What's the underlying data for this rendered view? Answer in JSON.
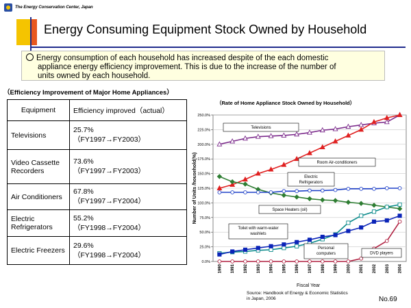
{
  "header": {
    "org": "The Energy Conservation Center, Japan",
    "title": "Energy Consuming Equipment Stock Owned by Household"
  },
  "notice": {
    "line1": "Energy consumption of each household has increased despite of the each domestic",
    "line2": "appliance energy efficiency improvement. This is due to the increase of the number of",
    "line3": "units owned by each household."
  },
  "table": {
    "title": "（Efficiency Improvement of Major Home Appliances）",
    "headers": [
      "Equipment",
      "Efficiency improved（actual）"
    ],
    "rows": [
      {
        "equipment": "Televisions",
        "pct": "25.7%",
        "period": "（FY1997→FY2003）"
      },
      {
        "equipment": "Video Cassette Recorders",
        "pct": "73.6%",
        "period": "（FY1997→FY2003）"
      },
      {
        "equipment": "Air Conditioners",
        "pct": "67.8%",
        "period": "（FY1997→FY2004）"
      },
      {
        "equipment": "Electric Refrigerators",
        "pct": "55.2%",
        "period": "（FY1998→FY2004）"
      },
      {
        "equipment": "Electric Freezers",
        "pct": "29.6%",
        "period": "（FY1998→FY2004）"
      }
    ]
  },
  "footer": {
    "source1": "Source: Handbook of Energy & Economic Statistics",
    "source2": "in Japan, 2006",
    "page": "No.69"
  },
  "chart_data": {
    "type": "line",
    "title": "（Rate of Home Appliance Stock Owned by Household）",
    "xlabel": "Fiscal Year",
    "ylabel": "Number of Units /household(%)",
    "ylim": [
      0,
      250
    ],
    "yticks": [
      "0.0%",
      "25.0%",
      "50.0%",
      "75.0%",
      "100.0%",
      "125.0%",
      "150.0%",
      "175.0%",
      "200.0%",
      "225.0%",
      "250.0%"
    ],
    "categories": [
      "1990",
      "1991",
      "1992",
      "1993",
      "1994",
      "1995",
      "1996",
      "1997",
      "1998",
      "1999",
      "2000",
      "2001",
      "2002",
      "2003",
      "2004"
    ],
    "series": [
      {
        "name": "Televisions",
        "color": "#7b2a8b",
        "marker": "triangle-open",
        "values": [
          200,
          205,
          210,
          213,
          214,
          215,
          217,
          220,
          224,
          226,
          230,
          233,
          236,
          238,
          250
        ]
      },
      {
        "name": "Room Air-conditioners",
        "color": "#e02020",
        "marker": "triangle",
        "values": [
          125,
          131,
          140,
          150,
          157,
          165,
          175,
          185,
          195,
          205,
          215,
          225,
          238,
          245,
          250
        ]
      },
      {
        "name": "Electric Refrigerators",
        "color": "#2e7d32",
        "marker": "diamond",
        "values": [
          145,
          136,
          132,
          123,
          117,
          113,
          110,
          107,
          105,
          104,
          101,
          99,
          96,
          93,
          90
        ]
      },
      {
        "name": "Space Heaters (oil)",
        "color": "#1e40c8",
        "marker": "circle-open",
        "values": [
          118,
          118,
          118,
          118,
          118,
          120,
          120,
          121,
          121,
          122,
          124,
          124,
          124,
          125,
          125
        ]
      },
      {
        "name": "Toilet with warm-water washlets",
        "color": "#0a8a8a",
        "marker": "square-open",
        "values": [
          14,
          16,
          17,
          19,
          20,
          23,
          26,
          31,
          38,
          46,
          66,
          78,
          85,
          93,
          97
        ]
      },
      {
        "name": "Personal computers",
        "color": "#0b24b8",
        "marker": "square",
        "values": [
          12,
          17,
          20,
          23,
          26,
          29,
          33,
          37,
          42,
          45,
          52,
          58,
          68,
          70,
          78
        ]
      },
      {
        "name": "DVD players",
        "color": "#b02040",
        "marker": "circle-open",
        "values": [
          0,
          0,
          0,
          0,
          0,
          0,
          0,
          0,
          0,
          0,
          0,
          5,
          22,
          35,
          68
        ]
      }
    ],
    "annotations": [
      "Televisions",
      "Room Air-conditioners",
      "Electric Refrigerators",
      "Space Heaters (oil)",
      "Toilet with warm-water washlets",
      "Personal computers",
      "DVD players"
    ]
  }
}
